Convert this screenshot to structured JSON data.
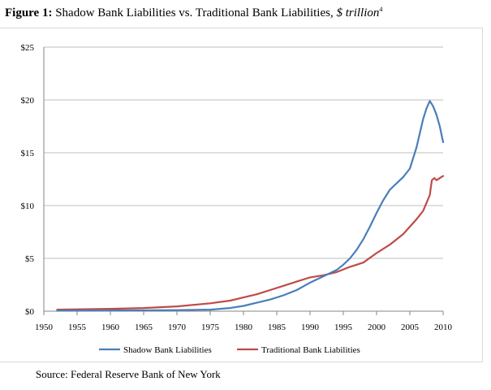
{
  "title": {
    "figure_label": "Figure 1:",
    "main_text": "Shadow Bank Liabilities vs. Traditional Bank Liabilities,",
    "units": "$ trillion",
    "footnote_mark": "4"
  },
  "source": "Source: Federal Reserve Bank of New York",
  "chart_data": {
    "type": "line",
    "title": "Shadow Bank Liabilities vs. Traditional Bank Liabilities, $ trillion",
    "xlabel": "",
    "ylabel": "",
    "xlim": [
      1950,
      2010
    ],
    "ylim": [
      0,
      25
    ],
    "x_ticks": [
      1950,
      1955,
      1960,
      1965,
      1970,
      1975,
      1980,
      1985,
      1990,
      1995,
      2000,
      2005,
      2010
    ],
    "y_ticks": [
      0,
      5,
      10,
      15,
      20,
      25
    ],
    "y_tick_labels": [
      "$0",
      "$5",
      "$10",
      "$15",
      "$20",
      "$25"
    ],
    "grid": "horizontal",
    "legend_position": "bottom",
    "series": [
      {
        "name": "Shadow Bank Liabilities",
        "color": "#4a7ebb",
        "x": [
          1952,
          1955,
          1960,
          1965,
          1970,
          1975,
          1978,
          1980,
          1982,
          1984,
          1986,
          1988,
          1990,
          1992,
          1994,
          1995,
          1996,
          1997,
          1998,
          1999,
          2000,
          2001,
          2002,
          2003,
          2004,
          2005,
          2006,
          2007,
          2007.5,
          2008,
          2008.5,
          2009,
          2009.5,
          2010
        ],
        "values": [
          0.05,
          0.05,
          0.07,
          0.08,
          0.1,
          0.15,
          0.3,
          0.5,
          0.8,
          1.1,
          1.5,
          2.0,
          2.7,
          3.3,
          3.9,
          4.4,
          5.0,
          5.8,
          6.8,
          8.0,
          9.3,
          10.5,
          11.5,
          12.1,
          12.7,
          13.5,
          15.5,
          18.2,
          19.2,
          19.9,
          19.4,
          18.6,
          17.5,
          16.0
        ]
      },
      {
        "name": "Traditional Bank Liabilities",
        "color": "#be4b48",
        "x": [
          1952,
          1955,
          1960,
          1965,
          1970,
          1975,
          1978,
          1980,
          1982,
          1984,
          1986,
          1988,
          1990,
          1992,
          1994,
          1996,
          1998,
          2000,
          2002,
          2004,
          2006,
          2007,
          2008,
          2008.3,
          2008.7,
          2009,
          2009.5,
          2010
        ],
        "values": [
          0.15,
          0.18,
          0.22,
          0.3,
          0.45,
          0.75,
          1.0,
          1.3,
          1.6,
          2.0,
          2.4,
          2.8,
          3.2,
          3.4,
          3.7,
          4.2,
          4.6,
          5.5,
          6.3,
          7.3,
          8.7,
          9.5,
          11.0,
          12.4,
          12.6,
          12.4,
          12.6,
          12.8
        ]
      }
    ]
  }
}
